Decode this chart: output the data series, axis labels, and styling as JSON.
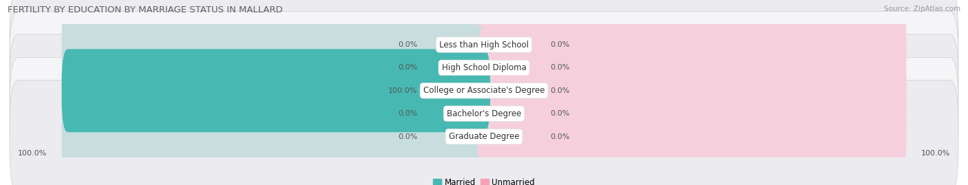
{
  "title": "FERTILITY BY EDUCATION BY MARRIAGE STATUS IN MALLARD",
  "source": "Source: ZipAtlas.com",
  "categories": [
    "Less than High School",
    "High School Diploma",
    "College or Associate's Degree",
    "Bachelor's Degree",
    "Graduate Degree"
  ],
  "married_values": [
    0.0,
    0.0,
    100.0,
    0.0,
    0.0
  ],
  "unmarried_values": [
    0.0,
    0.0,
    0.0,
    0.0,
    0.0
  ],
  "married_color": "#47b8b2",
  "unmarried_color": "#f5a0b5",
  "bar_bg_married": "#c8dede",
  "bar_bg_unmarried": "#f5d0dc",
  "row_bg_odd": "#ebebf0",
  "row_bg_even": "#f5f5f8",
  "title_color": "#606060",
  "label_color": "#555555",
  "value_color": "#555555",
  "source_color": "#999999",
  "bar_max": 100.0,
  "bar_default_pct": 15.0,
  "figsize": [
    14.06,
    2.69
  ],
  "dpi": 100
}
